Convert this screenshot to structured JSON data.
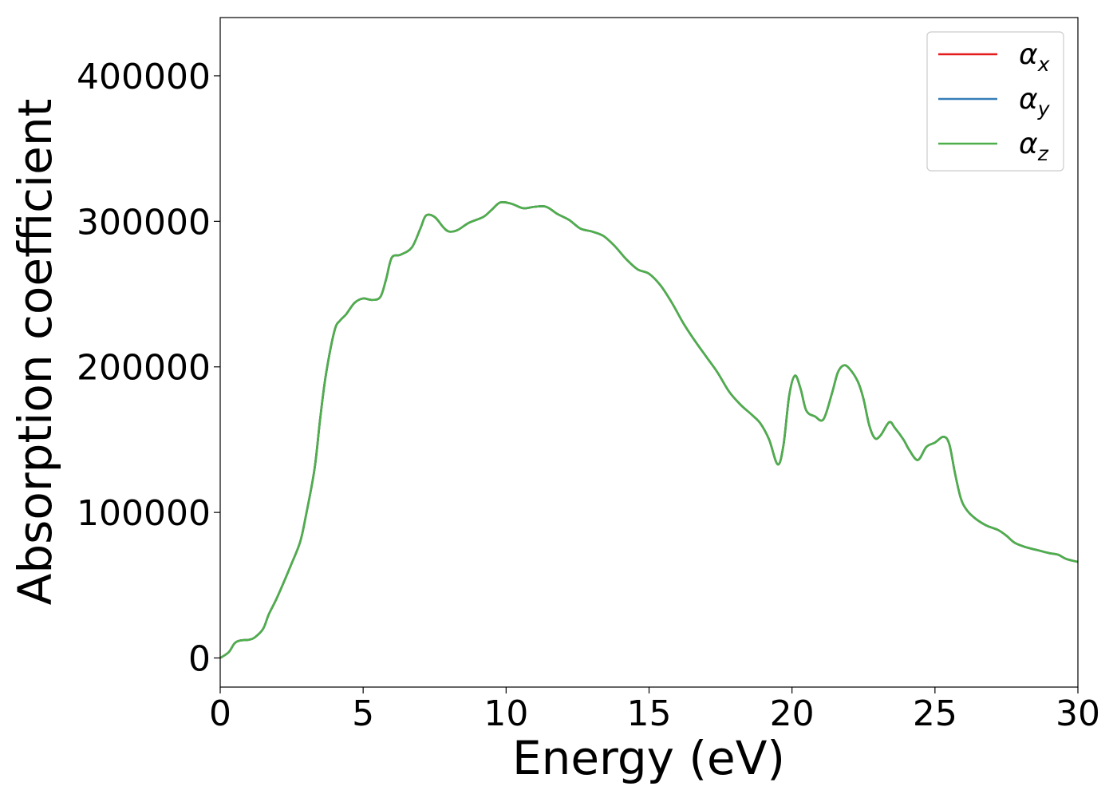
{
  "chart_data": {
    "type": "line",
    "title": "",
    "xlabel": "Energy (eV)",
    "ylabel": "Absorption coefficient",
    "xlim": [
      0,
      30
    ],
    "ylim": [
      -20000,
      440000
    ],
    "xticks": [
      0,
      5,
      10,
      15,
      20,
      25,
      30
    ],
    "xtick_labels": [
      "0",
      "5",
      "10",
      "15",
      "20",
      "25",
      "30"
    ],
    "yticks": [
      0,
      100000,
      200000,
      300000,
      400000
    ],
    "ytick_labels": [
      "0",
      "100000",
      "200000",
      "300000",
      "400000"
    ],
    "grid": false,
    "legend_placement": "top-right",
    "x": [
      0,
      0.3,
      0.5,
      0.7,
      1.0,
      1.2,
      1.5,
      1.7,
      2.0,
      2.5,
      2.8,
      3.0,
      3.3,
      3.5,
      3.7,
      4.0,
      4.2,
      4.4,
      4.7,
      5.0,
      5.3,
      5.6,
      5.8,
      6.0,
      6.3,
      6.7,
      7.0,
      7.2,
      7.5,
      7.8,
      8.0,
      8.3,
      8.7,
      9.2,
      9.5,
      9.8,
      10.2,
      10.6,
      11.0,
      11.4,
      11.8,
      12.2,
      12.6,
      13.0,
      13.4,
      13.8,
      14.2,
      14.6,
      15.0,
      15.4,
      15.8,
      16.2,
      16.6,
      17.0,
      17.4,
      17.8,
      18.2,
      18.6,
      18.9,
      19.2,
      19.5,
      19.7,
      19.9,
      20.1,
      20.3,
      20.5,
      20.8,
      21.1,
      21.4,
      21.6,
      21.8,
      22.0,
      22.3,
      22.5,
      22.7,
      22.9,
      23.1,
      23.4,
      23.6,
      23.9,
      24.1,
      24.4,
      24.7,
      25.0,
      25.3,
      25.5,
      25.7,
      25.9,
      26.1,
      26.4,
      26.8,
      27.2,
      27.5,
      27.8,
      28.2,
      28.6,
      29.0,
      29.3,
      29.6,
      30.0
    ],
    "series": [
      {
        "name": "αx",
        "color": "#e41a1c",
        "y": [
          0,
          4000,
          10000,
          12000,
          12500,
          14000,
          20000,
          30000,
          42000,
          65000,
          80000,
          98000,
          130000,
          165000,
          195000,
          225000,
          232000,
          236000,
          244000,
          247000,
          246000,
          248000,
          260000,
          275000,
          277000,
          282000,
          295000,
          304000,
          303000,
          296000,
          293000,
          294000,
          299000,
          303000,
          308000,
          313000,
          312000,
          309000,
          310000,
          310000,
          305000,
          301000,
          295000,
          293000,
          290000,
          283000,
          274000,
          267000,
          264000,
          256000,
          244000,
          230000,
          218000,
          207000,
          196000,
          183000,
          174000,
          167000,
          161000,
          150000,
          133000,
          146000,
          180000,
          194000,
          185000,
          170000,
          166000,
          164000,
          182000,
          196000,
          201000,
          199000,
          190000,
          178000,
          160000,
          151000,
          153000,
          162000,
          158000,
          150000,
          143000,
          136000,
          145000,
          148000,
          152000,
          147000,
          127000,
          110000,
          102000,
          96000,
          91000,
          88000,
          84000,
          79000,
          76000,
          74000,
          72000,
          71000,
          68000,
          66000
        ]
      },
      {
        "name": "αy",
        "color": "#377eb8",
        "y": [
          0,
          4000,
          10000,
          12000,
          12500,
          14000,
          20000,
          30000,
          42000,
          65000,
          80000,
          98000,
          130000,
          165000,
          195000,
          225000,
          232000,
          236000,
          244000,
          247000,
          246000,
          248000,
          260000,
          275000,
          277000,
          282000,
          295000,
          304000,
          303000,
          296000,
          293000,
          294000,
          299000,
          303000,
          308000,
          313000,
          312000,
          309000,
          310000,
          310000,
          305000,
          301000,
          295000,
          293000,
          290000,
          283000,
          274000,
          267000,
          264000,
          256000,
          244000,
          230000,
          218000,
          207000,
          196000,
          183000,
          174000,
          167000,
          161000,
          150000,
          133000,
          146000,
          180000,
          194000,
          185000,
          170000,
          166000,
          164000,
          182000,
          196000,
          201000,
          199000,
          190000,
          178000,
          160000,
          151000,
          153000,
          162000,
          158000,
          150000,
          143000,
          136000,
          145000,
          148000,
          152000,
          147000,
          127000,
          110000,
          102000,
          96000,
          91000,
          88000,
          84000,
          79000,
          76000,
          74000,
          72000,
          71000,
          68000,
          66000
        ]
      },
      {
        "name": "αz",
        "color": "#4daf4a",
        "y": [
          0,
          4000,
          10000,
          12000,
          12500,
          14000,
          20000,
          30000,
          42000,
          65000,
          80000,
          98000,
          130000,
          165000,
          195000,
          225000,
          232000,
          236000,
          244000,
          247000,
          246000,
          248000,
          260000,
          275000,
          277000,
          282000,
          295000,
          304000,
          303000,
          296000,
          293000,
          294000,
          299000,
          303000,
          308000,
          313000,
          312000,
          309000,
          310000,
          310000,
          305000,
          301000,
          295000,
          293000,
          290000,
          283000,
          274000,
          267000,
          264000,
          256000,
          244000,
          230000,
          218000,
          207000,
          196000,
          183000,
          174000,
          167000,
          161000,
          150000,
          133000,
          146000,
          180000,
          194000,
          185000,
          170000,
          166000,
          164000,
          182000,
          196000,
          201000,
          199000,
          190000,
          178000,
          160000,
          151000,
          153000,
          162000,
          158000,
          150000,
          143000,
          136000,
          145000,
          148000,
          152000,
          147000,
          127000,
          110000,
          102000,
          96000,
          91000,
          88000,
          84000,
          79000,
          76000,
          74000,
          72000,
          71000,
          68000,
          66000
        ]
      }
    ],
    "legend": [
      {
        "symbol": "α",
        "sub": "x"
      },
      {
        "symbol": "α",
        "sub": "y"
      },
      {
        "symbol": "α",
        "sub": "z"
      }
    ]
  }
}
